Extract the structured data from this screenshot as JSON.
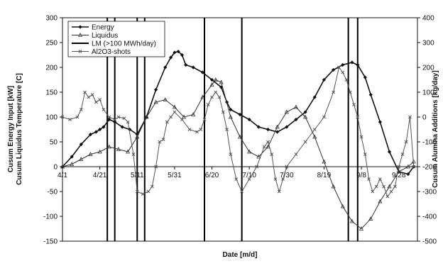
{
  "chart_data": {
    "type": "line",
    "title": "",
    "xlabel": "Date [m/d]",
    "ylabel_left_line1": "Cusum Energy Input [kW]",
    "ylabel_left_line2": "Cusum Liquidus Temperature [C]",
    "ylabel_right": "Cusum Alumina Additions [kg/day]",
    "ylim_left": [
      -150,
      300
    ],
    "ylim_right": [
      -500,
      400
    ],
    "xlim": [
      0,
      190
    ],
    "left_ticks": [
      -150,
      -100,
      -50,
      0,
      50,
      100,
      150,
      200,
      250,
      300
    ],
    "right_ticks": [
      -500,
      -400,
      -300,
      -200,
      -100,
      0,
      100,
      200,
      300,
      400
    ],
    "x_ticks": [
      {
        "day": 0,
        "label": "4/1"
      },
      {
        "day": 20,
        "label": "4/21"
      },
      {
        "day": 40,
        "label": "5/11"
      },
      {
        "day": 60,
        "label": "5/31"
      },
      {
        "day": 80,
        "label": "6/20"
      },
      {
        "day": 100,
        "label": "7/10"
      },
      {
        "day": 120,
        "label": "7/30"
      },
      {
        "day": 140,
        "label": "8/19"
      },
      {
        "day": 160,
        "label": "9/8"
      },
      {
        "day": 180,
        "label": "9/28"
      }
    ],
    "legend_position": "top-left",
    "grid": false,
    "vertical_markers": [
      {
        "name": "LM (>100 MWh/day)",
        "days": [
          24,
          28,
          40,
          44,
          76,
          96,
          153,
          158
        ]
      }
    ],
    "series": [
      {
        "name": "Energy",
        "axis": "left",
        "marker": "diamond",
        "color": "#111111",
        "x": [
          0,
          5,
          10,
          15,
          18,
          20,
          22,
          25,
          28,
          32,
          36,
          40,
          45,
          50,
          55,
          58,
          60,
          62,
          64,
          66,
          70,
          75,
          80,
          85,
          88,
          90,
          95,
          100,
          105,
          110,
          115,
          120,
          125,
          130,
          135,
          140,
          145,
          150,
          155,
          158,
          162,
          165,
          170,
          175,
          180,
          185,
          188
        ],
        "y": [
          0,
          20,
          45,
          65,
          70,
          75,
          80,
          95,
          90,
          80,
          75,
          65,
          100,
          155,
          200,
          220,
          230,
          232,
          225,
          205,
          200,
          190,
          175,
          160,
          130,
          115,
          105,
          95,
          80,
          75,
          70,
          80,
          95,
          110,
          140,
          175,
          195,
          205,
          210,
          205,
          180,
          145,
          90,
          30,
          -10,
          -15,
          0
        ]
      },
      {
        "name": "Liquidus",
        "axis": "left",
        "marker": "triangle",
        "color": "#333333",
        "x": [
          0,
          5,
          10,
          15,
          20,
          25,
          30,
          35,
          40,
          45,
          50,
          55,
          60,
          65,
          70,
          75,
          80,
          82,
          85,
          90,
          95,
          100,
          105,
          110,
          115,
          120,
          125,
          130,
          135,
          140,
          145,
          150,
          155,
          160,
          165,
          170,
          175,
          180,
          185,
          188
        ],
        "y": [
          0,
          5,
          15,
          25,
          30,
          40,
          35,
          30,
          60,
          100,
          130,
          135,
          120,
          100,
          105,
          140,
          165,
          175,
          170,
          100,
          60,
          30,
          20,
          40,
          80,
          110,
          120,
          100,
          60,
          10,
          -40,
          -80,
          -110,
          -125,
          -105,
          -70,
          -40,
          -10,
          0,
          10
        ]
      },
      {
        "name": "Al2O3-shots",
        "axis": "right",
        "marker": "x",
        "color": "#555555",
        "x": [
          0,
          4,
          8,
          10,
          12,
          14,
          16,
          18,
          20,
          22,
          25,
          28,
          30,
          33,
          35,
          38,
          40,
          43,
          46,
          48,
          50,
          52,
          54,
          56,
          58,
          60,
          64,
          68,
          72,
          74,
          76,
          78,
          80,
          82,
          84,
          86,
          88,
          90,
          93,
          96,
          100,
          104,
          108,
          110,
          112,
          114,
          116,
          118,
          120,
          125,
          130,
          135,
          140,
          145,
          148,
          150,
          152,
          154,
          156,
          158,
          160,
          162,
          164,
          166,
          168,
          170,
          172,
          174,
          176,
          178,
          180,
          182,
          184,
          186,
          188
        ],
        "y": [
          0,
          -10,
          0,
          30,
          100,
          80,
          90,
          60,
          70,
          30,
          0,
          -10,
          0,
          -5,
          -20,
          -150,
          -300,
          -310,
          -300,
          -280,
          -200,
          -100,
          -90,
          -20,
          0,
          20,
          -10,
          -50,
          -60,
          -50,
          -10,
          50,
          80,
          100,
          80,
          20,
          -50,
          -150,
          -250,
          -300,
          -250,
          -200,
          -120,
          -100,
          -150,
          -250,
          -300,
          -250,
          -200,
          -150,
          -100,
          -50,
          0,
          100,
          200,
          180,
          150,
          100,
          50,
          0,
          -80,
          -150,
          -250,
          -300,
          -280,
          -250,
          -280,
          -320,
          -300,
          -280,
          -200,
          -150,
          -100,
          0,
          -200
        ]
      }
    ]
  }
}
